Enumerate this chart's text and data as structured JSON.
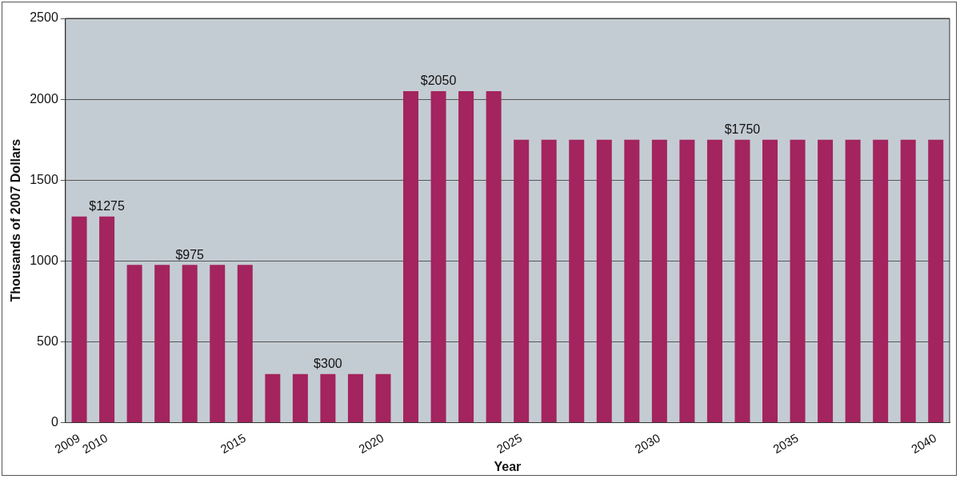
{
  "chart_data": {
    "type": "bar",
    "xlabel": "Year",
    "ylabel": "Thousands of 2007 Dollars",
    "x": [
      2009,
      2010,
      2011,
      2012,
      2013,
      2014,
      2015,
      2016,
      2017,
      2018,
      2019,
      2020,
      2021,
      2022,
      2023,
      2024,
      2025,
      2026,
      2027,
      2028,
      2029,
      2030,
      2031,
      2032,
      2033,
      2034,
      2035,
      2036,
      2037,
      2038,
      2039,
      2040
    ],
    "values": [
      1275,
      1275,
      975,
      975,
      975,
      975,
      975,
      300,
      300,
      300,
      300,
      300,
      2050,
      2050,
      2050,
      2050,
      1750,
      1750,
      1750,
      1750,
      1750,
      1750,
      1750,
      1750,
      1750,
      1750,
      1750,
      1750,
      1750,
      1750,
      1750,
      1750
    ],
    "color": "#a3245e",
    "xlim": [
      2008.5,
      2040.5
    ],
    "xticks": [
      2009,
      2010,
      2015,
      2020,
      2025,
      2030,
      2035,
      2040
    ],
    "ylim": [
      0,
      2500
    ],
    "yticks": [
      0,
      500,
      1000,
      1500,
      2000,
      2500
    ],
    "grid": "y",
    "legend": false,
    "annotations": [
      {
        "text": "$1275",
        "x": 2010,
        "y": 1275
      },
      {
        "text": "$975",
        "x": 2013,
        "y": 975
      },
      {
        "text": "$300",
        "x": 2018,
        "y": 300
      },
      {
        "text": "$2050",
        "x": 2022,
        "y": 2050
      },
      {
        "text": "$1750",
        "x": 2033,
        "y": 1750
      }
    ]
  }
}
